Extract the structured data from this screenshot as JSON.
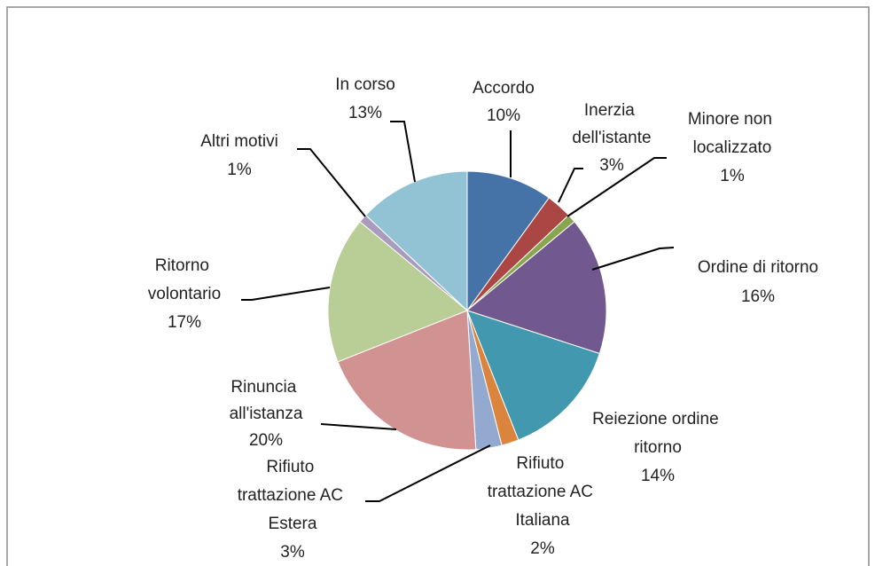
{
  "chart_data": {
    "type": "pie",
    "categories": [
      "Accordo",
      "Inerzia dell'istante",
      "Minore non localizzato",
      "Ordine di ritorno",
      "Reiezione ordine ritorno",
      "Rifiuto trattazione AC Italiana",
      "Rifiuto trattazione AC Estera",
      "Rinuncia all'istanza",
      "Ritorno volontario",
      "Altri motivi",
      "In corso"
    ],
    "values": [
      10,
      3,
      1,
      16,
      14,
      2,
      3,
      20,
      17,
      1,
      13
    ],
    "value_labels": [
      "10%",
      "3%",
      "1%",
      "16%",
      "14%",
      "2%",
      "3%",
      "20%",
      "17%",
      "1%",
      "13%"
    ],
    "colors": [
      "#4572a7",
      "#aa4643",
      "#89a54e",
      "#71588f",
      "#4198af",
      "#db843d",
      "#93a9cf",
      "#d19392",
      "#b9cd96",
      "#a99bbd",
      "#92c3d4"
    ]
  }
}
